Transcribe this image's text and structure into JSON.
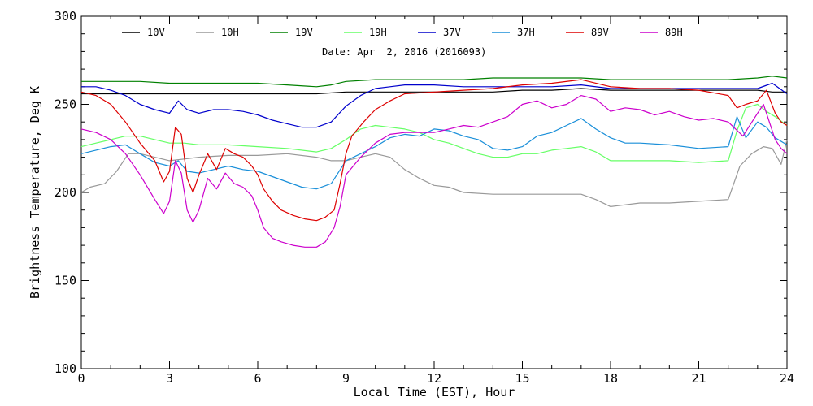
{
  "chart_data": {
    "type": "line",
    "subtitle": "Date: Apr  2, 2016 (2016093)",
    "xlabel": "Local Time (EST), Hour",
    "ylabel": "Brightness Temperature, Deg K",
    "xlim": [
      0,
      24
    ],
    "ylim": [
      100,
      300
    ],
    "x_ticks": [
      0,
      3,
      6,
      9,
      12,
      15,
      18,
      21,
      24
    ],
    "x_tick_labels": [
      "0",
      "3",
      "6",
      "9",
      "12",
      "15",
      "18",
      "21",
      "24"
    ],
    "y_ticks": [
      100,
      150,
      200,
      250,
      300
    ],
    "y_tick_labels": [
      "100",
      "150",
      "200",
      "250",
      "300"
    ],
    "grid": false,
    "legend_position": "top",
    "series": [
      {
        "name": "10V",
        "color": "#000000",
        "x": [
          0,
          1,
          2,
          3,
          4,
          5,
          6,
          7,
          8,
          9,
          10,
          11,
          12,
          13,
          14,
          15,
          16,
          17,
          18,
          19,
          20,
          21,
          22,
          23,
          23.5,
          24
        ],
        "y": [
          256,
          256,
          256,
          256,
          256,
          256,
          256,
          256,
          256,
          257,
          257,
          257,
          257,
          257,
          257,
          258,
          258,
          259,
          258,
          258,
          258,
          258,
          258,
          258,
          257,
          257
        ]
      },
      {
        "name": "10H",
        "color": "#999999",
        "x": [
          0,
          0.3,
          0.8,
          1.2,
          1.6,
          2,
          2.5,
          3,
          3.5,
          4,
          5,
          6,
          7,
          8,
          8.5,
          9,
          9.5,
          10,
          10.5,
          11,
          11.5,
          12,
          12.5,
          13,
          14,
          15,
          16,
          17,
          17.5,
          18,
          19,
          20,
          21,
          22,
          22.4,
          22.8,
          23.2,
          23.5,
          23.8,
          24
        ],
        "y": [
          200,
          203,
          205,
          212,
          222,
          222,
          220,
          218,
          219,
          220,
          221,
          221,
          222,
          220,
          218,
          218,
          220,
          222,
          220,
          213,
          208,
          204,
          203,
          200,
          199,
          199,
          199,
          199,
          196,
          192,
          194,
          194,
          195,
          196,
          215,
          222,
          226,
          225,
          216,
          230
        ]
      },
      {
        "name": "19V",
        "color": "#008000",
        "x": [
          0,
          1,
          2,
          3,
          4,
          5,
          6,
          7,
          8,
          8.5,
          9,
          10,
          11,
          12,
          13,
          14,
          15,
          16,
          17,
          18,
          19,
          20,
          21,
          22,
          23,
          23.5,
          24
        ],
        "y": [
          263,
          263,
          263,
          262,
          262,
          262,
          262,
          261,
          260,
          261,
          263,
          264,
          264,
          264,
          264,
          265,
          265,
          265,
          265,
          264,
          264,
          264,
          264,
          264,
          265,
          266,
          265
        ]
      },
      {
        "name": "19H",
        "color": "#66ff66",
        "x": [
          0,
          0.5,
          1,
          1.5,
          2,
          2.5,
          3,
          3.5,
          4,
          5,
          6,
          7,
          8,
          8.5,
          9,
          9.5,
          10,
          10.5,
          11,
          11.5,
          12,
          12.5,
          13,
          13.5,
          14,
          14.5,
          15,
          15.5,
          16,
          16.5,
          17,
          17.5,
          18,
          19,
          20,
          21,
          22,
          22.3,
          22.6,
          23,
          23.3,
          23.6,
          24
        ],
        "y": [
          226,
          228,
          230,
          232,
          232,
          230,
          228,
          228,
          227,
          227,
          226,
          225,
          223,
          225,
          230,
          236,
          238,
          237,
          236,
          234,
          230,
          228,
          225,
          222,
          220,
          220,
          222,
          222,
          224,
          225,
          226,
          223,
          218,
          218,
          218,
          217,
          218,
          235,
          248,
          250,
          246,
          243,
          238
        ]
      },
      {
        "name": "37V",
        "color": "#0000cc",
        "x": [
          0,
          0.5,
          1,
          1.5,
          2,
          2.5,
          3,
          3.3,
          3.6,
          4,
          4.5,
          5,
          5.5,
          6,
          6.5,
          7,
          7.5,
          8,
          8.5,
          9,
          9.5,
          10,
          10.5,
          11,
          12,
          13,
          14,
          15,
          16,
          17,
          18,
          19,
          20,
          21,
          22,
          22.5,
          23,
          23.5,
          24
        ],
        "y": [
          260,
          260,
          258,
          255,
          250,
          247,
          245,
          252,
          247,
          245,
          247,
          247,
          246,
          244,
          241,
          239,
          237,
          237,
          240,
          249,
          255,
          259,
          260,
          261,
          261,
          260,
          260,
          260,
          260,
          261,
          259,
          259,
          259,
          259,
          259,
          259,
          259,
          262,
          256
        ]
      },
      {
        "name": "37H",
        "color": "#1a8fd9",
        "x": [
          0,
          0.5,
          1,
          1.5,
          2,
          2.5,
          3,
          3.3,
          3.6,
          4,
          4.5,
          5,
          5.5,
          6,
          6.5,
          7,
          7.5,
          8,
          8.5,
          9,
          9.5,
          10,
          10.5,
          11,
          11.5,
          12,
          12.5,
          13,
          13.5,
          14,
          14.5,
          15,
          15.5,
          16,
          16.5,
          17,
          17.5,
          18,
          18.5,
          19,
          20,
          21,
          22,
          22.3,
          22.6,
          23,
          23.3,
          23.6,
          24
        ],
        "y": [
          222,
          224,
          226,
          227,
          222,
          217,
          215,
          218,
          212,
          211,
          213,
          215,
          213,
          212,
          209,
          206,
          203,
          202,
          205,
          218,
          222,
          226,
          231,
          233,
          232,
          236,
          235,
          232,
          230,
          225,
          224,
          226,
          232,
          234,
          238,
          242,
          236,
          231,
          228,
          228,
          227,
          225,
          226,
          243,
          231,
          240,
          237,
          231,
          227
        ]
      },
      {
        "name": "89V",
        "color": "#dd0000",
        "x": [
          0,
          0.5,
          1,
          1.5,
          2,
          2.5,
          2.8,
          3,
          3.2,
          3.4,
          3.6,
          3.8,
          4,
          4.3,
          4.6,
          4.9,
          5.2,
          5.5,
          5.8,
          6,
          6.2,
          6.5,
          6.8,
          7.2,
          7.6,
          8,
          8.3,
          8.6,
          8.8,
          9,
          9.2,
          9.6,
          10,
          10.5,
          11,
          12,
          13,
          14,
          15,
          16,
          17,
          18,
          19,
          20,
          21,
          22,
          22.3,
          22.6,
          23,
          23.3,
          23.6,
          23.8,
          24
        ],
        "y": [
          257,
          255,
          250,
          240,
          228,
          218,
          206,
          212,
          237,
          233,
          208,
          200,
          210,
          222,
          213,
          225,
          222,
          220,
          215,
          210,
          202,
          195,
          190,
          187,
          185,
          184,
          186,
          190,
          205,
          222,
          232,
          240,
          247,
          252,
          256,
          257,
          258,
          259,
          261,
          262,
          264,
          260,
          259,
          259,
          258,
          255,
          248,
          250,
          252,
          258,
          245,
          240,
          238
        ]
      },
      {
        "name": "89H",
        "color": "#cc00cc",
        "x": [
          0,
          0.5,
          1,
          1.5,
          2,
          2.5,
          2.8,
          3,
          3.2,
          3.4,
          3.6,
          3.8,
          4,
          4.3,
          4.6,
          4.9,
          5.2,
          5.5,
          5.8,
          6,
          6.2,
          6.5,
          6.8,
          7.2,
          7.6,
          8,
          8.3,
          8.6,
          8.8,
          9,
          9.5,
          10,
          10.5,
          11,
          11.5,
          12,
          12.5,
          13,
          13.5,
          14,
          14.5,
          15,
          15.5,
          16,
          16.5,
          17,
          17.5,
          18,
          18.5,
          19,
          19.5,
          20,
          20.5,
          21,
          21.5,
          22,
          22.5,
          23,
          23.2,
          23.4,
          23.6,
          23.8,
          24
        ],
        "y": [
          236,
          234,
          230,
          222,
          210,
          196,
          188,
          195,
          218,
          211,
          190,
          183,
          190,
          208,
          202,
          211,
          205,
          203,
          198,
          190,
          180,
          174,
          172,
          170,
          169,
          169,
          172,
          180,
          192,
          210,
          220,
          228,
          233,
          234,
          234,
          234,
          236,
          238,
          237,
          240,
          243,
          250,
          252,
          248,
          250,
          255,
          253,
          246,
          248,
          247,
          244,
          246,
          243,
          241,
          242,
          240,
          232,
          245,
          250,
          240,
          230,
          225,
          222
        ]
      }
    ]
  }
}
